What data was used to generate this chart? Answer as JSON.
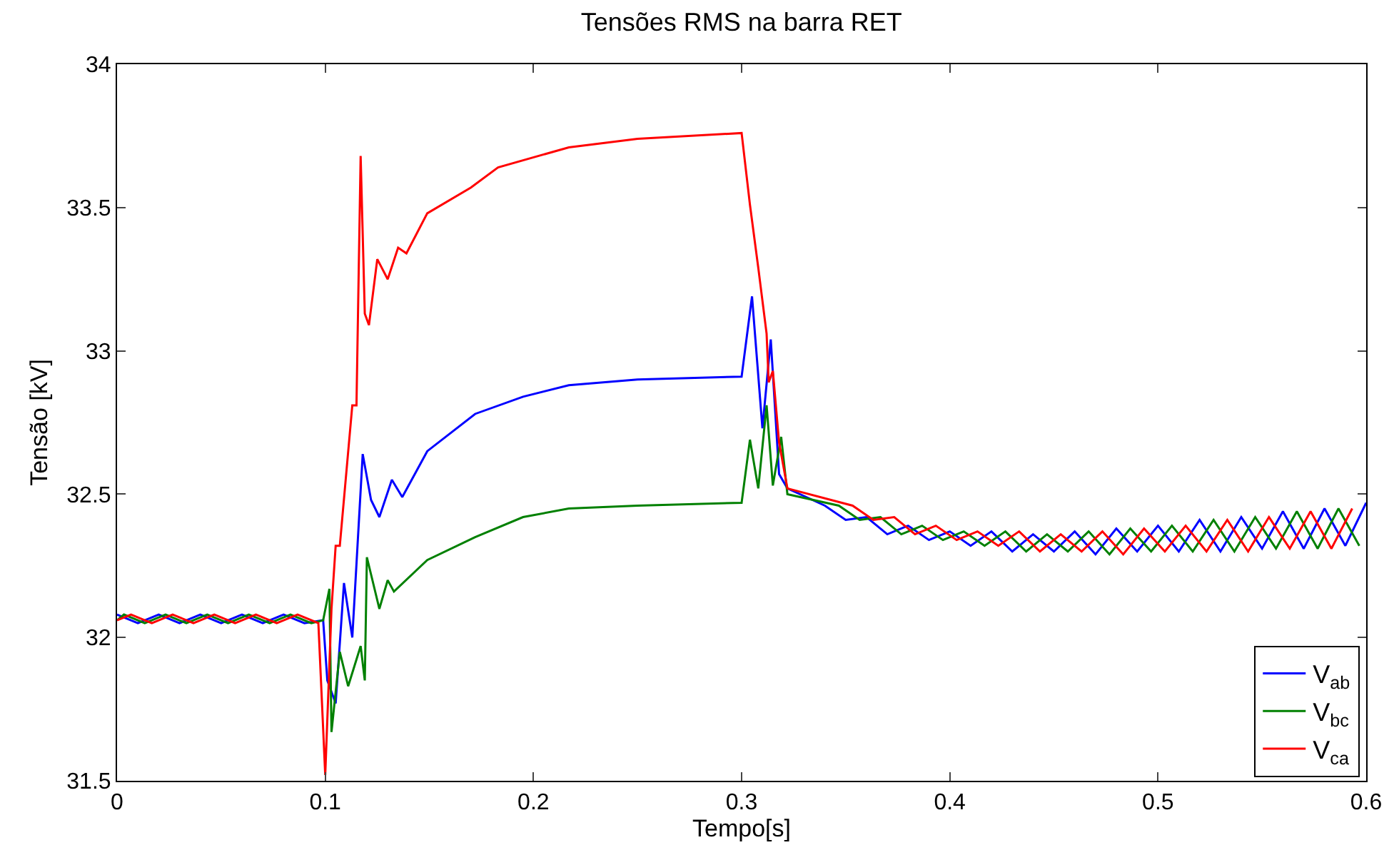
{
  "chart_data": {
    "type": "line",
    "title": "Tensões RMS na barra RET",
    "xlabel": "Tempo[s]",
    "ylabel": "Tensão [kV]",
    "xlim": [
      0,
      0.6
    ],
    "xticks": [
      0,
      0.1,
      0.2,
      0.3,
      0.4,
      0.5,
      0.6
    ],
    "ylim": [
      31.5,
      34
    ],
    "yticks": [
      31.5,
      32,
      32.5,
      33,
      33.5,
      34
    ],
    "legend": "bottom right",
    "line_style": "solid",
    "marker": "none",
    "series": [
      {
        "name": "V$_{ab}$",
        "color": "#0000ff",
        "x": [
          0,
          0.01,
          0.02,
          0.03,
          0.04,
          0.05,
          0.06,
          0.07,
          0.08,
          0.09,
          0.099,
          0.101,
          0.105,
          0.109,
          0.113,
          0.118,
          0.122,
          0.126,
          0.132,
          0.137,
          0.149,
          0.172,
          0.195,
          0.217,
          0.25,
          0.3,
          0.305,
          0.31,
          0.314,
          0.318,
          0.322,
          0.34,
          0.35,
          0.36,
          0.37,
          0.38,
          0.39,
          0.4,
          0.41,
          0.42,
          0.43,
          0.44,
          0.45,
          0.46,
          0.47,
          0.48,
          0.49,
          0.5,
          0.51,
          0.52,
          0.53,
          0.54,
          0.55,
          0.56,
          0.57,
          0.58,
          0.59,
          0.6
        ],
        "values": [
          32.08,
          32.05,
          32.08,
          32.05,
          32.08,
          32.05,
          32.08,
          32.05,
          32.08,
          32.05,
          32.06,
          31.85,
          31.77,
          32.19,
          32.0,
          32.64,
          32.48,
          32.42,
          32.55,
          32.49,
          32.65,
          32.78,
          32.84,
          32.88,
          32.9,
          32.91,
          33.19,
          32.73,
          33.04,
          32.57,
          32.52,
          32.46,
          32.41,
          32.42,
          32.36,
          32.39,
          32.34,
          32.37,
          32.32,
          32.37,
          32.3,
          32.36,
          32.3,
          32.37,
          32.29,
          32.38,
          32.3,
          32.39,
          32.3,
          32.41,
          32.3,
          32.42,
          32.31,
          32.44,
          32.31,
          32.45,
          32.32,
          32.47
        ]
      },
      {
        "name": "V$_{bc}$",
        "color": "#008000",
        "x": [
          0,
          0.0033,
          0.0133,
          0.0233,
          0.0333,
          0.0433,
          0.0533,
          0.0633,
          0.0733,
          0.0833,
          0.0933,
          0.099,
          0.102,
          0.103,
          0.107,
          0.111,
          0.117,
          0.119,
          0.12,
          0.126,
          0.13,
          0.133,
          0.149,
          0.172,
          0.195,
          0.217,
          0.25,
          0.3,
          0.304,
          0.308,
          0.312,
          0.315,
          0.319,
          0.322,
          0.3467,
          0.3567,
          0.3667,
          0.3767,
          0.3867,
          0.3967,
          0.4067,
          0.4167,
          0.4267,
          0.4367,
          0.4467,
          0.4567,
          0.4667,
          0.4767,
          0.4867,
          0.4967,
          0.5067,
          0.5167,
          0.5267,
          0.5367,
          0.5467,
          0.5567,
          0.5667,
          0.5767,
          0.5867,
          0.5967
        ],
        "values": [
          32.06,
          32.08,
          32.05,
          32.08,
          32.05,
          32.08,
          32.05,
          32.08,
          32.05,
          32.08,
          32.05,
          32.06,
          32.17,
          31.67,
          31.95,
          31.83,
          31.97,
          31.85,
          32.28,
          32.1,
          32.2,
          32.16,
          32.27,
          32.35,
          32.42,
          32.45,
          32.46,
          32.47,
          32.69,
          32.52,
          32.81,
          32.53,
          32.7,
          32.5,
          32.46,
          32.41,
          32.42,
          32.36,
          32.39,
          32.34,
          32.37,
          32.32,
          32.37,
          32.3,
          32.36,
          32.3,
          32.37,
          32.29,
          32.38,
          32.3,
          32.39,
          32.3,
          32.41,
          32.3,
          32.42,
          32.31,
          32.44,
          32.31,
          32.45,
          32.32
        ]
      },
      {
        "name": "V$_{ca}$",
        "color": "#ff0000",
        "x": [
          0,
          0.0067,
          0.0167,
          0.0267,
          0.0367,
          0.0467,
          0.0567,
          0.0667,
          0.0767,
          0.0867,
          0.0967,
          0.1,
          0.103,
          0.105,
          0.107,
          0.113,
          0.115,
          0.117,
          0.119,
          0.121,
          0.125,
          0.13,
          0.135,
          0.139,
          0.149,
          0.17,
          0.183,
          0.217,
          0.25,
          0.3,
          0.304,
          0.308,
          0.312,
          0.313,
          0.315,
          0.318,
          0.322,
          0.3533,
          0.3633,
          0.3733,
          0.3833,
          0.3933,
          0.4033,
          0.4133,
          0.4233,
          0.4333,
          0.4433,
          0.4533,
          0.4633,
          0.4733,
          0.4833,
          0.4933,
          0.5033,
          0.5133,
          0.5233,
          0.5333,
          0.5433,
          0.5533,
          0.5633,
          0.5733,
          0.5833,
          0.5933
        ],
        "values": [
          32.06,
          32.08,
          32.05,
          32.08,
          32.05,
          32.08,
          32.05,
          32.08,
          32.05,
          32.08,
          32.05,
          31.52,
          32.1,
          32.32,
          32.32,
          32.81,
          32.81,
          33.68,
          33.13,
          33.09,
          33.32,
          33.25,
          33.36,
          33.34,
          33.48,
          33.57,
          33.64,
          33.71,
          33.74,
          33.76,
          33.51,
          33.29,
          33.06,
          32.89,
          32.93,
          32.68,
          32.52,
          32.46,
          32.41,
          32.42,
          32.36,
          32.39,
          32.34,
          32.37,
          32.32,
          32.37,
          32.3,
          32.36,
          32.3,
          32.37,
          32.29,
          32.38,
          32.3,
          32.39,
          32.3,
          32.41,
          32.3,
          32.42,
          32.31,
          32.44,
          32.31,
          32.45
        ]
      }
    ]
  }
}
